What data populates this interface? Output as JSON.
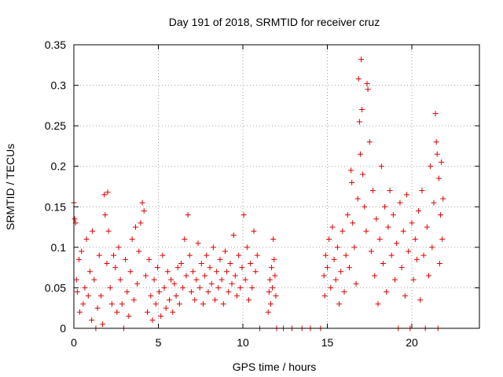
{
  "chart_data": {
    "type": "scatter",
    "title": "Day 191 of 2018, SRMTID for receiver cruz",
    "xlabel": "GPS time / hours",
    "ylabel": "SRMTID / TECUs",
    "xlim": [
      0,
      24
    ],
    "ylim": [
      0,
      0.35
    ],
    "xticks": [
      0,
      5,
      10,
      15,
      20
    ],
    "xtick_labels": [
      "0",
      "5",
      "10",
      "15",
      "20"
    ],
    "yticks": [
      0,
      0.05,
      0.1,
      0.15,
      0.2,
      0.25,
      0.3,
      0.35
    ],
    "ytick_labels": [
      "0",
      "0.05",
      "0.1",
      "0.15",
      "0.2",
      "0.25",
      "0.3",
      "0.35"
    ],
    "grid": true,
    "marker": "plus",
    "color": "#e00000",
    "series": [
      {
        "name": "SRMTID",
        "points": [
          [
            0.0,
            0.155
          ],
          [
            0.05,
            0.135
          ],
          [
            0.1,
            0.13
          ],
          [
            0.15,
            0.06
          ],
          [
            0.2,
            0.045
          ],
          [
            0.3,
            0.085
          ],
          [
            0.35,
            0.02
          ],
          [
            0.45,
            0.095
          ],
          [
            0.55,
            0.03
          ],
          [
            0.65,
            0.05
          ],
          [
            0.75,
            0.11
          ],
          [
            0.85,
            0.04
          ],
          [
            0.95,
            0.07
          ],
          [
            1.05,
            0.01
          ],
          [
            1.1,
            0.12
          ],
          [
            1.2,
            0.06
          ],
          [
            1.3,
            0.0
          ],
          [
            1.4,
            0.025
          ],
          [
            1.5,
            0.09
          ],
          [
            1.6,
            0.04
          ],
          [
            1.7,
            0.005
          ],
          [
            1.8,
            0.165
          ],
          [
            1.85,
            0.14
          ],
          [
            1.95,
            0.08
          ],
          [
            2.0,
            0.168
          ],
          [
            2.05,
            0.12
          ],
          [
            2.15,
            0.05
          ],
          [
            2.25,
            0.03
          ],
          [
            2.35,
            0.09
          ],
          [
            2.45,
            0.075
          ],
          [
            2.55,
            0.02
          ],
          [
            2.65,
            0.1
          ],
          [
            2.75,
            0.06
          ],
          [
            2.85,
            0.03
          ],
          [
            2.95,
            0.0
          ],
          [
            3.05,
            0.085
          ],
          [
            3.15,
            0.045
          ],
          [
            3.25,
            0.015
          ],
          [
            3.35,
            0.07
          ],
          [
            3.45,
            0.11
          ],
          [
            3.55,
            0.035
          ],
          [
            3.65,
            0.125
          ],
          [
            3.75,
            0.055
          ],
          [
            3.85,
            0.095
          ],
          [
            3.95,
            0.13
          ],
          [
            4.05,
            0.155
          ],
          [
            4.15,
            0.145
          ],
          [
            4.25,
            0.065
          ],
          [
            4.35,
            0.02
          ],
          [
            4.45,
            0.085
          ],
          [
            4.55,
            0.04
          ],
          [
            4.65,
            0.01
          ],
          [
            4.75,
            0.06
          ],
          [
            4.85,
            0.03
          ],
          [
            4.95,
            0.075
          ],
          [
            5.05,
            0.045
          ],
          [
            5.15,
            0.015
          ],
          [
            5.25,
            0.09
          ],
          [
            5.35,
            0.05
          ],
          [
            5.45,
            0.025
          ],
          [
            5.55,
            0.07
          ],
          [
            5.65,
            0.035
          ],
          [
            5.75,
            0.06
          ],
          [
            5.85,
            0.02
          ],
          [
            5.95,
            0.055
          ],
          [
            6.05,
            0.04
          ],
          [
            6.15,
            0.075
          ],
          [
            6.25,
            0.03
          ],
          [
            6.35,
            0.08
          ],
          [
            6.45,
            0.05
          ],
          [
            6.55,
            0.11
          ],
          [
            6.65,
            0.065
          ],
          [
            6.75,
            0.14
          ],
          [
            6.85,
            0.09
          ],
          [
            6.95,
            0.045
          ],
          [
            7.05,
            0.07
          ],
          [
            7.15,
            0.035
          ],
          [
            7.25,
            0.06
          ],
          [
            7.35,
            0.105
          ],
          [
            7.45,
            0.05
          ],
          [
            7.55,
            0.08
          ],
          [
            7.65,
            0.03
          ],
          [
            7.75,
            0.065
          ],
          [
            7.85,
            0.09
          ],
          [
            7.95,
            0.045
          ],
          [
            8.05,
            0.075
          ],
          [
            8.15,
            0.055
          ],
          [
            8.25,
            0.1
          ],
          [
            8.35,
            0.035
          ],
          [
            8.45,
            0.07
          ],
          [
            8.55,
            0.05
          ],
          [
            8.65,
            0.085
          ],
          [
            8.75,
            0.06
          ],
          [
            8.85,
            0.03
          ],
          [
            8.95,
            0.095
          ],
          [
            9.05,
            0.07
          ],
          [
            9.15,
            0.045
          ],
          [
            9.25,
            0.08
          ],
          [
            9.35,
            0.055
          ],
          [
            9.45,
            0.115
          ],
          [
            9.55,
            0.065
          ],
          [
            9.65,
            0.04
          ],
          [
            9.75,
            0.09
          ],
          [
            9.85,
            0.05
          ],
          [
            9.95,
            0.075
          ],
          [
            10.05,
            0.14
          ],
          [
            10.15,
            0.06
          ],
          [
            10.25,
            0.1
          ],
          [
            10.35,
            0.035
          ],
          [
            10.45,
            0.08
          ],
          [
            10.55,
            0.05
          ],
          [
            10.65,
            0.12
          ],
          [
            10.75,
            0.07
          ],
          [
            10.85,
            0.09
          ],
          [
            11.0,
            0.0
          ],
          [
            11.5,
            0.02
          ],
          [
            11.55,
            0.045
          ],
          [
            11.6,
            0.06
          ],
          [
            11.65,
            0.03
          ],
          [
            11.7,
            0.075
          ],
          [
            11.75,
            0.05
          ],
          [
            11.8,
            0.11
          ],
          [
            11.85,
            0.085
          ],
          [
            11.9,
            0.065
          ],
          [
            11.95,
            0.04
          ],
          [
            12.0,
            0.0
          ],
          [
            12.4,
            0.0
          ],
          [
            12.9,
            0.0
          ],
          [
            13.5,
            0.0
          ],
          [
            14.0,
            0.0
          ],
          [
            14.6,
            0.0
          ],
          [
            14.8,
            0.065
          ],
          [
            14.85,
            0.04
          ],
          [
            14.9,
            0.09
          ],
          [
            15.0,
            0.075
          ],
          [
            15.1,
            0.11
          ],
          [
            15.2,
            0.05
          ],
          [
            15.3,
            0.125
          ],
          [
            15.4,
            0.085
          ],
          [
            15.5,
            0.06
          ],
          [
            15.6,
            0.1
          ],
          [
            15.7,
            0.03
          ],
          [
            15.8,
            0.07
          ],
          [
            15.9,
            0.12
          ],
          [
            16.0,
            0.045
          ],
          [
            16.1,
            0.09
          ],
          [
            16.2,
            0.14
          ],
          [
            16.3,
            0.075
          ],
          [
            16.4,
            0.195
          ],
          [
            16.45,
            0.18
          ],
          [
            16.5,
            0.13
          ],
          [
            16.6,
            0.1
          ],
          [
            16.7,
            0.055
          ],
          [
            16.8,
            0.16
          ],
          [
            16.85,
            0.308
          ],
          [
            16.9,
            0.255
          ],
          [
            16.95,
            0.215
          ],
          [
            17.0,
            0.332
          ],
          [
            17.05,
            0.27
          ],
          [
            17.1,
            0.19
          ],
          [
            17.2,
            0.15
          ],
          [
            17.3,
            0.12
          ],
          [
            17.35,
            0.302
          ],
          [
            17.4,
            0.295
          ],
          [
            17.5,
            0.23
          ],
          [
            17.6,
            0.095
          ],
          [
            17.7,
            0.17
          ],
          [
            17.8,
            0.065
          ],
          [
            17.9,
            0.135
          ],
          [
            18.0,
            0.03
          ],
          [
            18.1,
            0.11
          ],
          [
            18.2,
            0.2
          ],
          [
            18.3,
            0.08
          ],
          [
            18.4,
            0.15
          ],
          [
            18.5,
            0.045
          ],
          [
            18.6,
            0.125
          ],
          [
            18.7,
            0.17
          ],
          [
            18.8,
            0.09
          ],
          [
            18.9,
            0.14
          ],
          [
            19.0,
            0.06
          ],
          [
            19.1,
            0.105
          ],
          [
            19.2,
            0.0
          ],
          [
            19.3,
            0.155
          ],
          [
            19.4,
            0.075
          ],
          [
            19.5,
            0.12
          ],
          [
            19.6,
            0.04
          ],
          [
            19.7,
            0.165
          ],
          [
            19.8,
            0.095
          ],
          [
            19.9,
            0.0
          ],
          [
            20.0,
            0.13
          ],
          [
            20.1,
            0.06
          ],
          [
            20.2,
            0.11
          ],
          [
            20.3,
            0.085
          ],
          [
            20.4,
            0.145
          ],
          [
            20.5,
            0.035
          ],
          [
            20.6,
            0.17
          ],
          [
            20.7,
            0.09
          ],
          [
            20.8,
            0.0
          ],
          [
            20.9,
            0.125
          ],
          [
            21.0,
            0.065
          ],
          [
            21.1,
            0.2
          ],
          [
            21.2,
            0.1
          ],
          [
            21.3,
            0.155
          ],
          [
            21.4,
            0.265
          ],
          [
            21.45,
            0.23
          ],
          [
            21.5,
            0.215
          ],
          [
            21.55,
            0.0
          ],
          [
            21.6,
            0.185
          ],
          [
            21.65,
            0.08
          ],
          [
            21.7,
            0.14
          ],
          [
            21.75,
            0.205
          ],
          [
            21.8,
            0.11
          ],
          [
            21.85,
            0.16
          ]
        ]
      }
    ]
  }
}
